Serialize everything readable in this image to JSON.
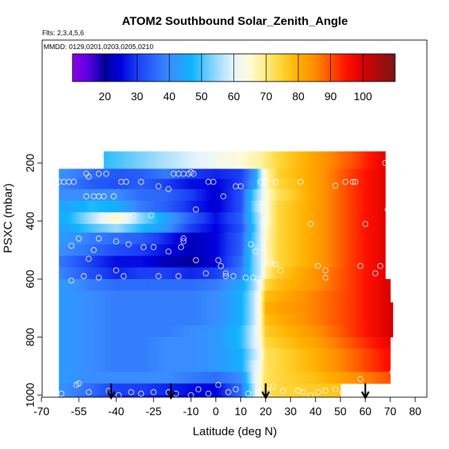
{
  "chart_data": {
    "type": "heatmap",
    "title": "ATOM2 Southbound Solar_Zenith_Angle",
    "notes": [
      "Flts: 2,3,4,5,6",
      "MMDD: 0129,0201,0203,0205,0210"
    ],
    "xlabel": "Latitude (deg N)",
    "ylabel": "PSXC (mbar)",
    "xlim": [
      -70,
      80
    ],
    "ylim": [
      1030,
      0
    ],
    "x_ticks": [
      -70,
      -55,
      -40,
      -25,
      -10,
      0,
      10,
      20,
      30,
      40,
      50,
      60,
      70,
      80
    ],
    "x_tick_labels": [
      "-70",
      "-55",
      "-40",
      "-25",
      "-10",
      "0",
      "10",
      "20",
      "30",
      "40",
      "50",
      "60",
      "70",
      "80"
    ],
    "y_ticks": [
      200,
      400,
      600,
      800,
      1000
    ],
    "y_tick_labels": [
      "200",
      "400",
      "600",
      "800",
      "1000"
    ],
    "colorbar": {
      "range": [
        10,
        110
      ],
      "ticks": [
        20,
        30,
        40,
        50,
        60,
        70,
        80,
        90,
        100
      ],
      "tick_labels": [
        "20",
        "30",
        "40",
        "50",
        "60",
        "70",
        "80",
        "90",
        "100"
      ]
    },
    "pressure_bins_mbar": [
      160,
      220,
      255,
      290,
      330,
      370,
      410,
      440,
      480,
      520,
      560,
      600,
      640,
      680,
      720,
      760,
      800,
      840,
      880,
      920,
      960,
      1000
    ],
    "lat_knots": [
      -70,
      -60,
      -50,
      -40,
      -30,
      -20,
      -10,
      0,
      10,
      15,
      18,
      20,
      25,
      40,
      55,
      70
    ],
    "profiles": [
      {
        "pressure": 190,
        "lat_start": -45,
        "lat_end": 68,
        "values": [
          40,
          44,
          47,
          50,
          53,
          56,
          59,
          62,
          65,
          67,
          68,
          70,
          74,
          82,
          90,
          100
        ]
      },
      {
        "pressure": 237,
        "lat_start": -63,
        "lat_end": 68,
        "values": [
          42,
          40,
          36,
          33,
          34,
          38,
          30,
          28,
          30,
          40,
          56,
          66,
          75,
          82,
          92,
          100
        ]
      },
      {
        "pressure": 272,
        "lat_start": -63,
        "lat_end": 68,
        "values": [
          42,
          38,
          34,
          32,
          34,
          30,
          26,
          25,
          30,
          42,
          56,
          66,
          74,
          82,
          92,
          100
        ]
      },
      {
        "pressure": 310,
        "lat_start": -63,
        "lat_end": 68,
        "values": [
          44,
          40,
          40,
          40,
          36,
          35,
          30,
          24,
          32,
          50,
          58,
          64,
          72,
          82,
          92,
          100
        ]
      },
      {
        "pressure": 350,
        "lat_start": -63,
        "lat_end": 68,
        "values": [
          50,
          44,
          48,
          46,
          38,
          34,
          28,
          24,
          32,
          52,
          60,
          64,
          74,
          82,
          92,
          100
        ]
      },
      {
        "pressure": 390,
        "lat_start": -63,
        "lat_end": 68,
        "values": [
          48,
          46,
          56,
          66,
          54,
          44,
          34,
          26,
          34,
          50,
          58,
          64,
          74,
          82,
          92,
          100
        ]
      },
      {
        "pressure": 425,
        "lat_start": -63,
        "lat_end": 68,
        "values": [
          46,
          44,
          50,
          55,
          48,
          42,
          30,
          25,
          32,
          48,
          58,
          65,
          74,
          82,
          92,
          100
        ]
      },
      {
        "pressure": 460,
        "lat_start": -63,
        "lat_end": 68,
        "values": [
          44,
          42,
          38,
          36,
          34,
          28,
          22,
          25,
          34,
          50,
          58,
          66,
          74,
          82,
          92,
          100
        ]
      },
      {
        "pressure": 500,
        "lat_start": -63,
        "lat_end": 68,
        "values": [
          42,
          40,
          36,
          32,
          30,
          26,
          22,
          25,
          34,
          52,
          58,
          66,
          74,
          82,
          92,
          100
        ]
      },
      {
        "pressure": 540,
        "lat_start": -63,
        "lat_end": 68,
        "values": [
          40,
          36,
          30,
          26,
          26,
          22,
          20,
          25,
          36,
          52,
          58,
          66,
          74,
          82,
          92,
          100
        ]
      },
      {
        "pressure": 580,
        "lat_start": -63,
        "lat_end": 68,
        "values": [
          42,
          38,
          32,
          28,
          30,
          30,
          28,
          30,
          38,
          52,
          58,
          68,
          76,
          84,
          92,
          100
        ]
      },
      {
        "pressure": 620,
        "lat_start": -63,
        "lat_end": 70,
        "values": [
          44,
          42,
          38,
          36,
          36,
          36,
          36,
          38,
          44,
          54,
          62,
          74,
          78,
          84,
          92,
          100
        ]
      },
      {
        "pressure": 660,
        "lat_start": -63,
        "lat_end": 70,
        "values": [
          44,
          42,
          40,
          38,
          38,
          38,
          38,
          40,
          46,
          56,
          66,
          78,
          80,
          86,
          92,
          100
        ]
      },
      {
        "pressure": 700,
        "lat_start": -63,
        "lat_end": 71,
        "values": [
          44,
          42,
          40,
          38,
          38,
          38,
          38,
          40,
          46,
          56,
          66,
          80,
          82,
          86,
          92,
          100
        ]
      },
      {
        "pressure": 740,
        "lat_start": -63,
        "lat_end": 71,
        "values": [
          44,
          42,
          40,
          38,
          38,
          38,
          38,
          40,
          46,
          56,
          66,
          78,
          80,
          86,
          92,
          100
        ]
      },
      {
        "pressure": 780,
        "lat_start": -63,
        "lat_end": 71,
        "values": [
          44,
          42,
          40,
          38,
          38,
          38,
          40,
          42,
          48,
          58,
          66,
          76,
          78,
          84,
          92,
          100
        ]
      },
      {
        "pressure": 820,
        "lat_start": -63,
        "lat_end": 70,
        "values": [
          44,
          42,
          40,
          38,
          38,
          40,
          40,
          42,
          48,
          58,
          64,
          74,
          76,
          82,
          90,
          98
        ]
      },
      {
        "pressure": 860,
        "lat_start": -63,
        "lat_end": 70,
        "values": [
          44,
          42,
          40,
          38,
          38,
          40,
          40,
          42,
          46,
          56,
          62,
          72,
          74,
          80,
          88,
          96
        ]
      },
      {
        "pressure": 900,
        "lat_start": -63,
        "lat_end": 70,
        "values": [
          44,
          42,
          40,
          38,
          38,
          40,
          40,
          42,
          46,
          58,
          64,
          72,
          74,
          80,
          88,
          96
        ]
      },
      {
        "pressure": 940,
        "lat_start": -63,
        "lat_end": 70,
        "values": [
          44,
          42,
          40,
          40,
          40,
          40,
          38,
          36,
          40,
          58,
          66,
          72,
          74,
          78,
          84,
          90
        ]
      },
      {
        "pressure": 980,
        "lat_start": -63,
        "lat_end": 50,
        "values": [
          42,
          40,
          36,
          30,
          30,
          28,
          26,
          25,
          36,
          56,
          66,
          72,
          74,
          76,
          78,
          80
        ]
      },
      {
        "pressure": 1015,
        "lat_start": -63,
        "lat_end": 50,
        "values": [
          42,
          40,
          34,
          28,
          28,
          26,
          24,
          24,
          36,
          56,
          66,
          72,
          74,
          76,
          78,
          80
        ]
      }
    ],
    "circle_markers": [
      [
        -66,
        237
      ],
      [
        -65,
        265
      ],
      [
        -63,
        265
      ],
      [
        -61,
        265
      ],
      [
        -59,
        265
      ],
      [
        -57,
        265
      ],
      [
        -52,
        237
      ],
      [
        -51,
        247
      ],
      [
        -47,
        237
      ],
      [
        -44,
        237
      ],
      [
        -38,
        265
      ],
      [
        -36,
        265
      ],
      [
        -30,
        265
      ],
      [
        -23,
        280
      ],
      [
        -19,
        290
      ],
      [
        -17,
        237
      ],
      [
        -15,
        237
      ],
      [
        -13,
        237
      ],
      [
        -11,
        237
      ],
      [
        -10,
        232
      ],
      [
        -9,
        237
      ],
      [
        -3,
        265
      ],
      [
        -1,
        265
      ],
      [
        3,
        315
      ],
      [
        8,
        280
      ],
      [
        10,
        280
      ],
      [
        18,
        265
      ],
      [
        20,
        265
      ],
      [
        24,
        265
      ],
      [
        34,
        265
      ],
      [
        48,
        278
      ],
      [
        52,
        265
      ],
      [
        55,
        265
      ],
      [
        56,
        265
      ],
      [
        68,
        200
      ],
      [
        70,
        200
      ],
      [
        -52,
        315
      ],
      [
        -49,
        315
      ],
      [
        -47,
        315
      ],
      [
        -45,
        315
      ],
      [
        -41,
        315
      ],
      [
        -33,
        380
      ],
      [
        -26,
        380
      ],
      [
        -8,
        360
      ],
      [
        19,
        410
      ],
      [
        20,
        400
      ],
      [
        38,
        410
      ],
      [
        60,
        410
      ],
      [
        69,
        360
      ],
      [
        70,
        330
      ],
      [
        -66,
        510
      ],
      [
        -65,
        550
      ],
      [
        -58,
        485
      ],
      [
        -55,
        460
      ],
      [
        -51,
        530
      ],
      [
        -49,
        500
      ],
      [
        -47,
        460
      ],
      [
        -40,
        470
      ],
      [
        -35,
        480
      ],
      [
        -29,
        490
      ],
      [
        -25,
        490
      ],
      [
        -19,
        505
      ],
      [
        -14,
        490
      ],
      [
        -13,
        460
      ],
      [
        -13,
        470
      ],
      [
        -8,
        535
      ],
      [
        1,
        535
      ],
      [
        2,
        555
      ],
      [
        4,
        580
      ],
      [
        14,
        480
      ],
      [
        16,
        505
      ],
      [
        22,
        540
      ],
      [
        24,
        550
      ],
      [
        26,
        570
      ],
      [
        41,
        555
      ],
      [
        44,
        570
      ],
      [
        44,
        595
      ],
      [
        58,
        555
      ],
      [
        64,
        580
      ],
      [
        66,
        555
      ],
      [
        70,
        535
      ],
      [
        -58,
        605
      ],
      [
        -53,
        590
      ],
      [
        -47,
        595
      ],
      [
        -40,
        570
      ],
      [
        -37,
        590
      ],
      [
        -23,
        590
      ],
      [
        -15,
        590
      ],
      [
        -4,
        580
      ],
      [
        4,
        590
      ],
      [
        7,
        590
      ],
      [
        12,
        595
      ],
      [
        15,
        595
      ],
      [
        17,
        600
      ],
      [
        -66,
        965
      ],
      [
        -65,
        995
      ],
      [
        -62,
        995
      ],
      [
        -56,
        965
      ],
      [
        -55,
        960
      ],
      [
        -51,
        990
      ],
      [
        -43,
        985
      ],
      [
        -39,
        1000
      ],
      [
        -34,
        990
      ],
      [
        -30,
        995
      ],
      [
        -25,
        990
      ],
      [
        -19,
        990
      ],
      [
        -16,
        995
      ],
      [
        -10,
        1000
      ],
      [
        -7,
        980
      ],
      [
        -3,
        995
      ],
      [
        1,
        965
      ],
      [
        5,
        990
      ],
      [
        8,
        980
      ],
      [
        13,
        995
      ],
      [
        17,
        990
      ],
      [
        21,
        985
      ],
      [
        23,
        970
      ],
      [
        27,
        985
      ],
      [
        33,
        985
      ],
      [
        35,
        990
      ],
      [
        38,
        1000
      ],
      [
        41,
        990
      ],
      [
        44,
        985
      ],
      [
        48,
        980
      ],
      [
        51,
        990
      ],
      [
        58,
        945
      ],
      [
        71,
        920
      ]
    ],
    "arrows": [
      -42,
      -18,
      20,
      60
    ]
  }
}
